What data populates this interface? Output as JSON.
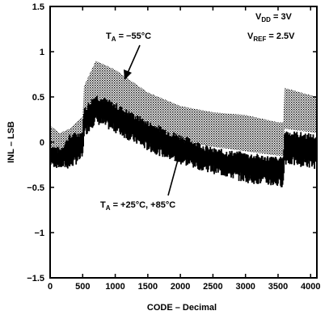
{
  "chart_data": {
    "type": "area",
    "xlabel": "CODE – Decimal",
    "ylabel": "INL – LSB",
    "xlim": [
      0,
      4096
    ],
    "ylim": [
      -1.5,
      1.5
    ],
    "x_ticks": [
      0,
      500,
      1000,
      1500,
      2000,
      2500,
      3000,
      3500,
      4000
    ],
    "x_tick_labels": [
      "0",
      "500",
      "1000",
      "1500",
      "2000",
      "2500",
      "3000",
      "3500",
      "4000"
    ],
    "y_ticks": [
      -1.5,
      -1,
      -0.5,
      0,
      0.5,
      1,
      1.5
    ],
    "y_tick_labels": [
      "−1.5",
      "−1",
      "−0.5",
      "0",
      "0.5",
      "1",
      "1.5"
    ],
    "grid": false,
    "conditions": {
      "vdd_label": "V",
      "vdd_sub": "DD",
      "vdd_value": " = 3V",
      "vref_label": "V",
      "vref_sub": "REF",
      "vref_value": " = 2.5V"
    },
    "annotations": [
      {
        "label": "T",
        "sub": "A",
        "text": " = −55°C",
        "series": "TA = −55°C"
      },
      {
        "label": "T",
        "sub": "A",
        "text": " = +25°C, +85°C",
        "series": "TA = +25°C, +85°C"
      }
    ],
    "series": [
      {
        "name": "TA = −55°C",
        "style": "stippled-band",
        "x": [
          0,
          150,
          300,
          500,
          520,
          700,
          1000,
          1500,
          2000,
          2500,
          3000,
          3500,
          3580,
          3600,
          4096
        ],
        "upper": [
          0.18,
          0.1,
          0.15,
          0.28,
          0.62,
          0.9,
          0.8,
          0.55,
          0.4,
          0.33,
          0.3,
          0.22,
          0.22,
          0.6,
          0.5
        ],
        "lower": [
          -0.22,
          -0.25,
          -0.25,
          -0.1,
          0.2,
          0.45,
          0.35,
          0.15,
          0.0,
          -0.05,
          -0.1,
          -0.15,
          -0.15,
          0.15,
          0.1
        ]
      },
      {
        "name": "TA = +25°C, +85°C",
        "style": "solid-band",
        "x": [
          0,
          150,
          300,
          500,
          520,
          700,
          1000,
          1500,
          2000,
          2500,
          3000,
          3500,
          3580,
          3600,
          4096
        ],
        "upper": [
          -0.05,
          -0.1,
          0.05,
          0.1,
          0.35,
          0.5,
          0.4,
          0.2,
          0.05,
          -0.1,
          -0.15,
          -0.2,
          -0.2,
          0.1,
          0.05
        ],
        "lower": [
          -0.22,
          -0.25,
          -0.25,
          -0.15,
          0.1,
          0.25,
          0.15,
          -0.05,
          -0.2,
          -0.3,
          -0.4,
          -0.45,
          -0.45,
          -0.2,
          -0.25
        ]
      }
    ]
  }
}
